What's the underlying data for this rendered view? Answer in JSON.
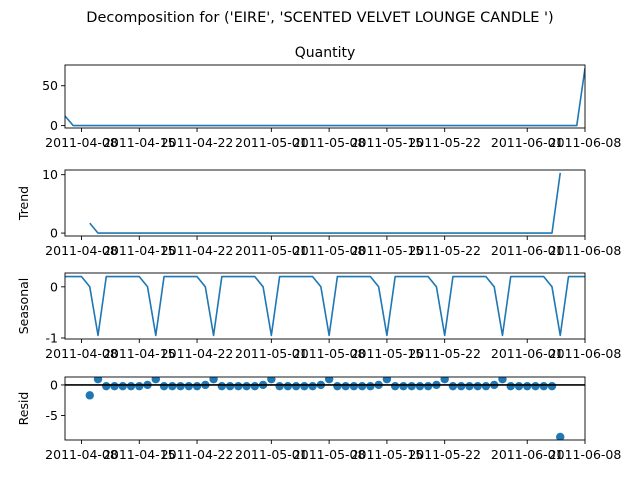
{
  "figure": {
    "suptitle": "Decomposition for ('EIRE', 'SCENTED VELVET LOUNGE CANDLE ')",
    "line_color": "#1f77b4",
    "marker_color": "#1f77b4",
    "baseline_color": "#000000"
  },
  "chart_data": [
    {
      "type": "line",
      "title": "Quantity",
      "ylabel": "",
      "xlabel": "",
      "x": [
        "2011-04-06",
        "2011-04-07",
        "2011-04-08",
        "2011-04-09",
        "2011-04-10",
        "2011-04-11",
        "2011-04-12",
        "2011-04-13",
        "2011-04-14",
        "2011-04-15",
        "2011-04-16",
        "2011-04-17",
        "2011-04-18",
        "2011-04-19",
        "2011-04-20",
        "2011-04-21",
        "2011-04-22",
        "2011-04-23",
        "2011-04-24",
        "2011-04-25",
        "2011-04-26",
        "2011-04-27",
        "2011-04-28",
        "2011-04-29",
        "2011-04-30",
        "2011-05-01",
        "2011-05-02",
        "2011-05-03",
        "2011-05-04",
        "2011-05-05",
        "2011-05-06",
        "2011-05-07",
        "2011-05-08",
        "2011-05-09",
        "2011-05-10",
        "2011-05-11",
        "2011-05-12",
        "2011-05-13",
        "2011-05-14",
        "2011-05-15",
        "2011-05-16",
        "2011-05-17",
        "2011-05-18",
        "2011-05-19",
        "2011-05-20",
        "2011-05-21",
        "2011-05-22",
        "2011-05-23",
        "2011-05-24",
        "2011-05-25",
        "2011-05-26",
        "2011-05-27",
        "2011-05-28",
        "2011-05-29",
        "2011-05-30",
        "2011-05-31",
        "2011-06-01",
        "2011-06-02",
        "2011-06-03",
        "2011-06-04",
        "2011-06-05",
        "2011-06-06",
        "2011-06-07",
        "2011-06-08"
      ],
      "values": [
        12,
        0,
        0,
        0,
        0,
        0,
        0,
        0,
        0,
        0,
        0,
        0,
        0,
        0,
        0,
        0,
        0,
        0,
        0,
        0,
        0,
        0,
        0,
        0,
        0,
        0,
        0,
        0,
        0,
        0,
        0,
        0,
        0,
        0,
        0,
        0,
        0,
        0,
        0,
        0,
        0,
        0,
        0,
        0,
        0,
        0,
        0,
        0,
        0,
        0,
        0,
        0,
        0,
        0,
        0,
        0,
        0,
        0,
        0,
        0,
        0,
        0,
        0,
        72
      ],
      "ylim": [
        -3,
        76
      ],
      "yticks": [
        0,
        50
      ],
      "xticks": [
        "2011-04-08",
        "2011-04-15",
        "2011-04-22",
        "2011-05-01",
        "2011-05-08",
        "2011-05-15",
        "2011-05-22",
        "2011-06-01",
        "2011-06-08"
      ],
      "grid": false
    },
    {
      "type": "line",
      "title": "",
      "ylabel": "Trend",
      "xlabel": "",
      "x": [
        "2011-04-09",
        "2011-04-10",
        "2011-04-11",
        "2011-04-12",
        "2011-04-13",
        "2011-04-14",
        "2011-04-15",
        "2011-04-16",
        "2011-04-17",
        "2011-04-18",
        "2011-04-19",
        "2011-04-20",
        "2011-04-21",
        "2011-04-22",
        "2011-04-23",
        "2011-04-24",
        "2011-04-25",
        "2011-04-26",
        "2011-04-27",
        "2011-04-28",
        "2011-04-29",
        "2011-04-30",
        "2011-05-01",
        "2011-05-02",
        "2011-05-03",
        "2011-05-04",
        "2011-05-05",
        "2011-05-06",
        "2011-05-07",
        "2011-05-08",
        "2011-05-09",
        "2011-05-10",
        "2011-05-11",
        "2011-05-12",
        "2011-05-13",
        "2011-05-14",
        "2011-05-15",
        "2011-05-16",
        "2011-05-17",
        "2011-05-18",
        "2011-05-19",
        "2011-05-20",
        "2011-05-21",
        "2011-05-22",
        "2011-05-23",
        "2011-05-24",
        "2011-05-25",
        "2011-05-26",
        "2011-05-27",
        "2011-05-28",
        "2011-05-29",
        "2011-05-30",
        "2011-05-31",
        "2011-06-01",
        "2011-06-02",
        "2011-06-03",
        "2011-06-04",
        "2011-06-05"
      ],
      "values": [
        1.7,
        0,
        0,
        0,
        0,
        0,
        0,
        0,
        0,
        0,
        0,
        0,
        0,
        0,
        0,
        0,
        0,
        0,
        0,
        0,
        0,
        0,
        0,
        0,
        0,
        0,
        0,
        0,
        0,
        0,
        0,
        0,
        0,
        0,
        0,
        0,
        0,
        0,
        0,
        0,
        0,
        0,
        0,
        0,
        0,
        0,
        0,
        0,
        0,
        0,
        0,
        0,
        0,
        0,
        0,
        0,
        0,
        10.3
      ],
      "ylim": [
        -0.5,
        10.8
      ],
      "yticks": [
        0,
        10
      ],
      "xticks": [
        "2011-04-08",
        "2011-04-15",
        "2011-04-22",
        "2011-05-01",
        "2011-05-08",
        "2011-05-15",
        "2011-05-22",
        "2011-06-01",
        "2011-06-08"
      ],
      "grid": false
    },
    {
      "type": "line",
      "title": "",
      "ylabel": "Seasonal",
      "xlabel": "",
      "x": [
        "2011-04-06",
        "2011-04-07",
        "2011-04-08",
        "2011-04-09",
        "2011-04-10",
        "2011-04-11",
        "2011-04-12",
        "2011-04-13",
        "2011-04-14",
        "2011-04-15",
        "2011-04-16",
        "2011-04-17",
        "2011-04-18",
        "2011-04-19",
        "2011-04-20",
        "2011-04-21",
        "2011-04-22",
        "2011-04-23",
        "2011-04-24",
        "2011-04-25",
        "2011-04-26",
        "2011-04-27",
        "2011-04-28",
        "2011-04-29",
        "2011-04-30",
        "2011-05-01",
        "2011-05-02",
        "2011-05-03",
        "2011-05-04",
        "2011-05-05",
        "2011-05-06",
        "2011-05-07",
        "2011-05-08",
        "2011-05-09",
        "2011-05-10",
        "2011-05-11",
        "2011-05-12",
        "2011-05-13",
        "2011-05-14",
        "2011-05-15",
        "2011-05-16",
        "2011-05-17",
        "2011-05-18",
        "2011-05-19",
        "2011-05-20",
        "2011-05-21",
        "2011-05-22",
        "2011-05-23",
        "2011-05-24",
        "2011-05-25",
        "2011-05-26",
        "2011-05-27",
        "2011-05-28",
        "2011-05-29",
        "2011-05-30",
        "2011-05-31",
        "2011-06-01",
        "2011-06-02",
        "2011-06-03",
        "2011-06-04",
        "2011-06-05",
        "2011-06-06",
        "2011-06-07",
        "2011-06-08"
      ],
      "values": [
        0.2,
        0.2,
        0.2,
        0.0,
        -0.95,
        0.2,
        0.2,
        0.2,
        0.2,
        0.2,
        0.0,
        -0.95,
        0.2,
        0.2,
        0.2,
        0.2,
        0.2,
        0.0,
        -0.95,
        0.2,
        0.2,
        0.2,
        0.2,
        0.2,
        0.0,
        -0.95,
        0.2,
        0.2,
        0.2,
        0.2,
        0.2,
        0.0,
        -0.95,
        0.2,
        0.2,
        0.2,
        0.2,
        0.2,
        0.0,
        -0.95,
        0.2,
        0.2,
        0.2,
        0.2,
        0.2,
        0.0,
        -0.95,
        0.2,
        0.2,
        0.2,
        0.2,
        0.2,
        0.0,
        -0.95,
        0.2,
        0.2,
        0.2,
        0.2,
        0.2,
        0.0,
        -0.95,
        0.2,
        0.2,
        0.2
      ],
      "ylim": [
        -1.02,
        0.27
      ],
      "yticks": [
        -1,
        0
      ],
      "xticks": [
        "2011-04-08",
        "2011-04-15",
        "2011-04-22",
        "2011-05-01",
        "2011-05-08",
        "2011-05-15",
        "2011-05-22",
        "2011-06-01",
        "2011-06-08"
      ],
      "grid": false
    },
    {
      "type": "scatter",
      "title": "",
      "ylabel": "Resid",
      "xlabel": "",
      "x": [
        "2011-04-09",
        "2011-04-10",
        "2011-04-11",
        "2011-04-12",
        "2011-04-13",
        "2011-04-14",
        "2011-04-15",
        "2011-04-16",
        "2011-04-17",
        "2011-04-18",
        "2011-04-19",
        "2011-04-20",
        "2011-04-21",
        "2011-04-22",
        "2011-04-23",
        "2011-04-24",
        "2011-04-25",
        "2011-04-26",
        "2011-04-27",
        "2011-04-28",
        "2011-04-29",
        "2011-04-30",
        "2011-05-01",
        "2011-05-02",
        "2011-05-03",
        "2011-05-04",
        "2011-05-05",
        "2011-05-06",
        "2011-05-07",
        "2011-05-08",
        "2011-05-09",
        "2011-05-10",
        "2011-05-11",
        "2011-05-12",
        "2011-05-13",
        "2011-05-14",
        "2011-05-15",
        "2011-05-16",
        "2011-05-17",
        "2011-05-18",
        "2011-05-19",
        "2011-05-20",
        "2011-05-21",
        "2011-05-22",
        "2011-05-23",
        "2011-05-24",
        "2011-05-25",
        "2011-05-26",
        "2011-05-27",
        "2011-05-28",
        "2011-05-29",
        "2011-05-30",
        "2011-05-31",
        "2011-06-01",
        "2011-06-02",
        "2011-06-03",
        "2011-06-04",
        "2011-06-05"
      ],
      "values": [
        -1.7,
        0.95,
        -0.2,
        -0.2,
        -0.2,
        -0.2,
        -0.2,
        0.0,
        0.95,
        -0.2,
        -0.2,
        -0.2,
        -0.2,
        -0.2,
        0.0,
        0.95,
        -0.2,
        -0.2,
        -0.2,
        -0.2,
        -0.2,
        0.0,
        0.95,
        -0.2,
        -0.2,
        -0.2,
        -0.2,
        -0.2,
        0.0,
        0.95,
        -0.2,
        -0.2,
        -0.2,
        -0.2,
        -0.2,
        0.0,
        0.95,
        -0.2,
        -0.2,
        -0.2,
        -0.2,
        -0.2,
        0.0,
        0.95,
        -0.2,
        -0.2,
        -0.2,
        -0.2,
        -0.2,
        0.0,
        0.95,
        -0.2,
        -0.2,
        -0.2,
        -0.2,
        -0.2,
        -0.2,
        -8.5
      ],
      "ylim": [
        -9.0,
        1.3
      ],
      "yticks": [
        -5,
        0
      ],
      "baseline": 0,
      "xticks": [
        "2011-04-08",
        "2011-04-15",
        "2011-04-22",
        "2011-05-01",
        "2011-05-08",
        "2011-05-15",
        "2011-05-22",
        "2011-06-01",
        "2011-06-08"
      ],
      "grid": false
    }
  ]
}
